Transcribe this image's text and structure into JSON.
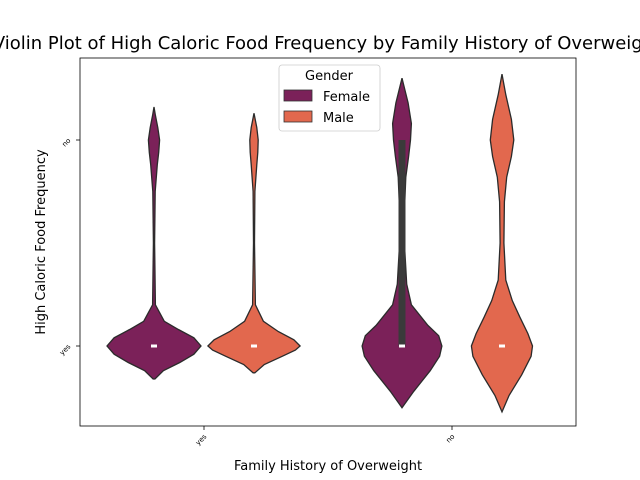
{
  "chart_data": {
    "type": "violin",
    "title": "Violin Plot of High Caloric Food Frequency by Family History of Overweight",
    "xlabel": "Family History of Overweight",
    "ylabel": "High Caloric Food Frequency",
    "categories": [
      "yes",
      "no"
    ],
    "y_categories": [
      "yes",
      "no"
    ],
    "legend": {
      "title": "Gender",
      "placement": "upper center",
      "entries": [
        "Female",
        "Male"
      ]
    },
    "series": [
      {
        "name": "Female",
        "color": "#7b2159",
        "violins": [
          {
            "category": "yes",
            "median": "yes",
            "range": [
              -0.16,
              1.16
            ],
            "density_profile": [
              [
                -0.16,
                0.02
              ],
              [
                -0.12,
                0.2
              ],
              [
                -0.08,
                0.55
              ],
              [
                -0.04,
                0.85
              ],
              [
                0.0,
                1.0
              ],
              [
                0.04,
                0.85
              ],
              [
                0.08,
                0.52
              ],
              [
                0.12,
                0.22
              ],
              [
                0.2,
                0.03
              ],
              [
                0.5,
                0.012
              ],
              [
                0.75,
                0.025
              ],
              [
                0.88,
                0.07
              ],
              [
                0.94,
                0.1
              ],
              [
                1.0,
                0.12
              ],
              [
                1.06,
                0.08
              ],
              [
                1.12,
                0.03
              ],
              [
                1.16,
                0.0
              ]
            ]
          },
          {
            "category": "no",
            "median": "yes",
            "iqr": [
              0,
              1
            ],
            "range": [
              -0.3,
              1.3
            ],
            "density_profile": [
              [
                -0.3,
                0.0
              ],
              [
                -0.22,
                0.25
              ],
              [
                -0.12,
                0.6
              ],
              [
                -0.05,
                0.8
              ],
              [
                0.0,
                0.85
              ],
              [
                0.05,
                0.78
              ],
              [
                0.1,
                0.55
              ],
              [
                0.2,
                0.2
              ],
              [
                0.3,
                0.1
              ],
              [
                0.5,
                0.05
              ],
              [
                0.7,
                0.06
              ],
              [
                0.82,
                0.08
              ],
              [
                0.92,
                0.14
              ],
              [
                1.0,
                0.18
              ],
              [
                1.08,
                0.2
              ],
              [
                1.18,
                0.13
              ],
              [
                1.3,
                0.0
              ]
            ]
          }
        ]
      },
      {
        "name": "Male",
        "color": "#e2684e",
        "violins": [
          {
            "category": "yes",
            "median": "yes",
            "range": [
              -0.13,
              1.13
            ],
            "density_profile": [
              [
                -0.13,
                0.02
              ],
              [
                -0.09,
                0.22
              ],
              [
                -0.05,
                0.6
              ],
              [
                -0.02,
                0.88
              ],
              [
                0.0,
                0.98
              ],
              [
                0.03,
                0.85
              ],
              [
                0.07,
                0.52
              ],
              [
                0.12,
                0.2
              ],
              [
                0.2,
                0.03
              ],
              [
                0.5,
                0.01
              ],
              [
                0.75,
                0.02
              ],
              [
                0.88,
                0.06
              ],
              [
                0.94,
                0.08
              ],
              [
                1.0,
                0.09
              ],
              [
                1.06,
                0.06
              ],
              [
                1.13,
                0.0
              ]
            ]
          },
          {
            "category": "no",
            "median": "yes",
            "range": [
              -0.32,
              1.32
            ],
            "density_profile": [
              [
                -0.32,
                0.0
              ],
              [
                -0.24,
                0.15
              ],
              [
                -0.14,
                0.42
              ],
              [
                -0.05,
                0.62
              ],
              [
                0.0,
                0.65
              ],
              [
                0.06,
                0.55
              ],
              [
                0.14,
                0.38
              ],
              [
                0.22,
                0.22
              ],
              [
                0.32,
                0.08
              ],
              [
                0.5,
                0.04
              ],
              [
                0.7,
                0.05
              ],
              [
                0.82,
                0.1
              ],
              [
                0.92,
                0.2
              ],
              [
                1.0,
                0.25
              ],
              [
                1.1,
                0.2
              ],
              [
                1.22,
                0.08
              ],
              [
                1.32,
                0.0
              ]
            ]
          }
        ]
      }
    ],
    "grid": false
  }
}
